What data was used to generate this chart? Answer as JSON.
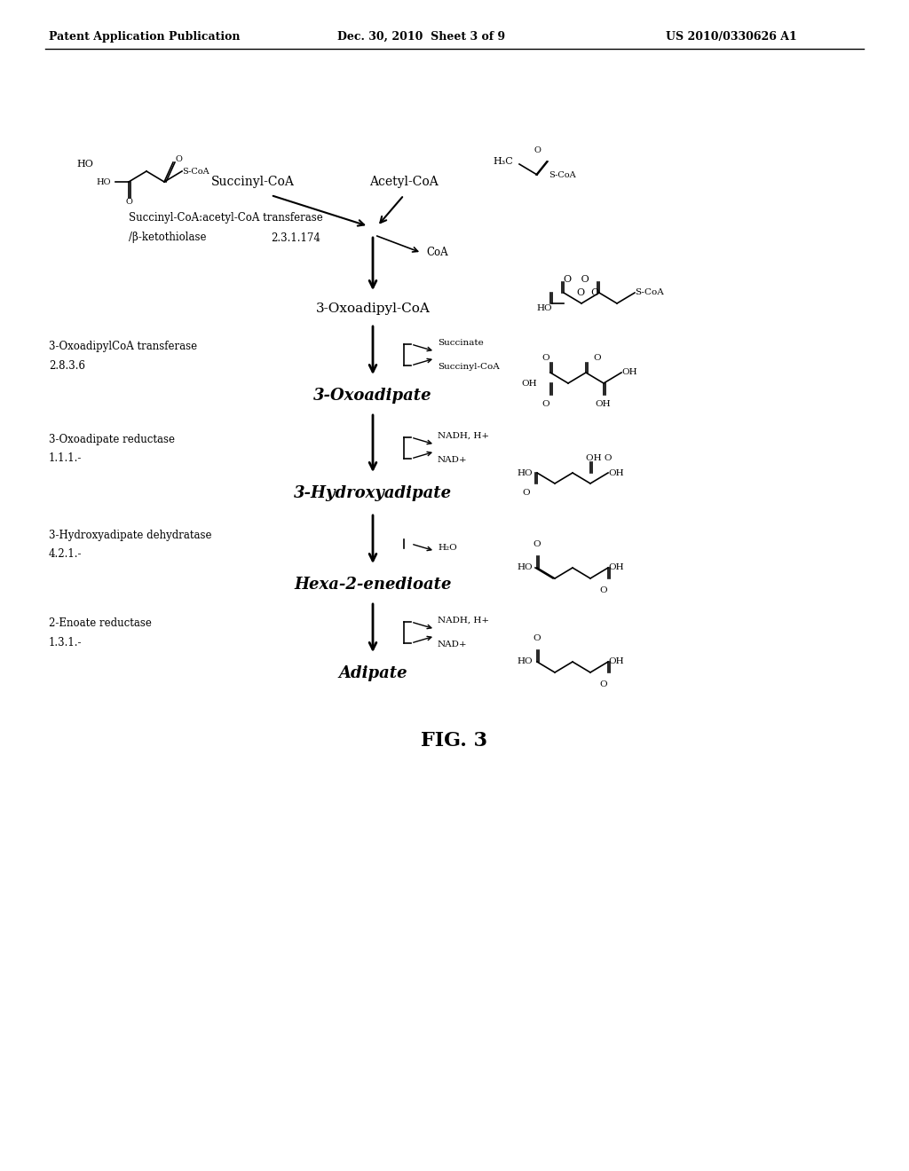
{
  "background_color": "#ffffff",
  "header_left": "Patent Application Publication",
  "header_center": "Dec. 30, 2010  Sheet 3 of 9",
  "header_right": "US 2010/0330626 A1",
  "figure_label": "FIG. 3",
  "pathway": [
    {
      "compound": "3-Oxoadipyl-CoA",
      "compound_bold": false,
      "enzyme": "Succinyl-CoA:acetyl-CoA transferase\n/β-ketothiolase",
      "ec": "2.3.1.174",
      "cofactor_in": "CoA",
      "cofactor_dir": "right"
    },
    {
      "compound": "3-Oxoadipate",
      "compound_bold": true,
      "enzyme": "3-OxoadipylCoA transferase",
      "ec": "2.8.3.6",
      "cofactor_in": "Succinate",
      "cofactor_out": "Succinyl-CoA",
      "cofactor_dir": "right"
    },
    {
      "compound": "3-Hydroxyadipate",
      "compound_bold": true,
      "enzyme": "3-Oxoadipate reductase",
      "ec": "1.1.1.-",
      "cofactor_in": "NADH, H+",
      "cofactor_out": "NAD+",
      "cofactor_dir": "right"
    },
    {
      "compound": "Hexa-2-enedioate",
      "compound_bold": true,
      "enzyme": "3-Hydroxyadipate dehydratase",
      "ec": "4.2.1.-",
      "cofactor_out": "H₂O",
      "cofactor_dir": "right"
    },
    {
      "compound": "Adipate",
      "compound_bold": true,
      "enzyme": "2-Enoate reductase",
      "ec": "1.3.1.-",
      "cofactor_in": "NADH, H+",
      "cofactor_out": "NAD+",
      "cofactor_dir": "right"
    }
  ]
}
